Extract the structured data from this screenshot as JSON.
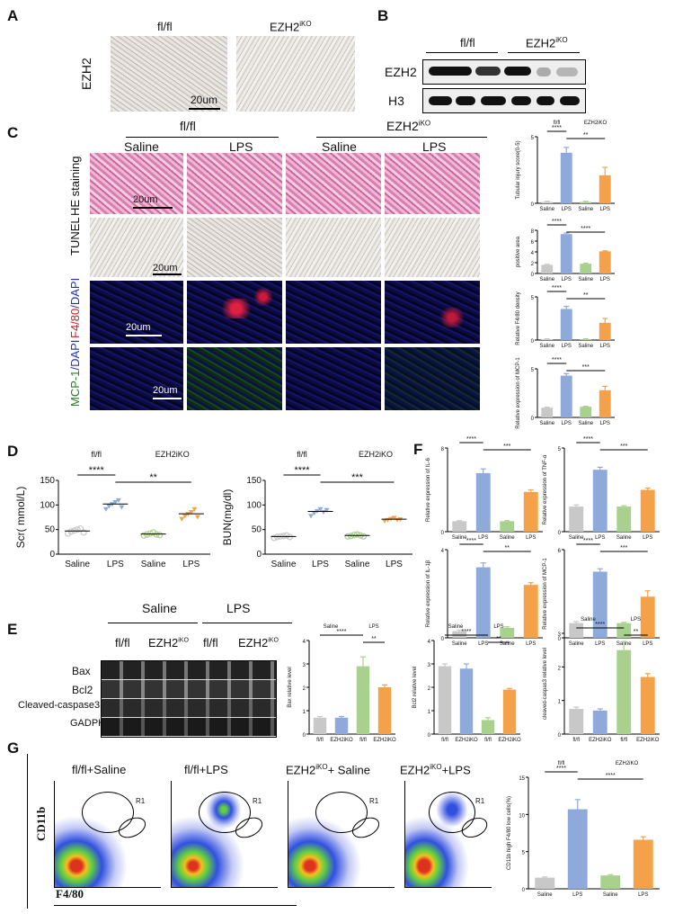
{
  "colors": {
    "saline_ctrl": "#c8c8c8",
    "lps_ctrl": "#8eaadb",
    "saline_ko": "#a9d18e",
    "lps_ko": "#f4a14a"
  },
  "panelA": {
    "letter": "A",
    "ylabel": "EZH2",
    "col1": "fl/fl",
    "col2": "EZH2",
    "col2_sup": "iKO",
    "scale": "20um"
  },
  "panelB": {
    "letter": "B",
    "group1": "fl/fl",
    "group2": "EZH2",
    "group2_sup": "iKO",
    "row1": "EZH2",
    "row2": "H3"
  },
  "panelC": {
    "letter": "C",
    "group1": "fl/fl",
    "group2": "EZH2",
    "group2_sup": "iKO",
    "cond1": "Saline",
    "cond2": "LPS",
    "cond3": "Saline",
    "cond4": "LPS",
    "rows": [
      "HE staining",
      "TUNEL",
      "F4/80/DAPI",
      "MCP-1/DAPI"
    ],
    "row3_red": "F4/80",
    "row3_blue": "/DAPI",
    "row4_green": "MCP-1",
    "row4_blue": "/DAPI",
    "scale": "20um"
  },
  "panelD": {
    "letter": "D"
  },
  "panelE": {
    "letter": "E",
    "group1": "Saline",
    "group2": "LPS",
    "sub1": "fl/fl",
    "sub2": "EZH2",
    "sub2_sup": "iKO",
    "sub3": "fl/fl",
    "sub4": "EZH2",
    "sub4_sup": "iKO",
    "rows": [
      "Bax",
      "Bcl2",
      "Cleaved-caspase3",
      "GADPH"
    ]
  },
  "panelF": {
    "letter": "F"
  },
  "panelG": {
    "letter": "G",
    "titles": [
      "fl/fl+Saline",
      "fl/fl+LPS",
      "EZH2",
      "EZH2"
    ],
    "title3_sup": "iKO",
    "title3_rest": "+ Saline",
    "title4_sup": "iKO",
    "title4_rest": "+LPS",
    "gate": "R1",
    "yaxis": "CD11b",
    "xaxis": "F4/80"
  },
  "chart_data": [
    {
      "type": "bar",
      "id": "C1",
      "ylabel": "Tubular injury score(0-5)",
      "categories": [
        "Saline",
        "LPS",
        "Saline",
        "LPS"
      ],
      "values": [
        0.1,
        3.8,
        0.1,
        2.1
      ],
      "errors": [
        0.05,
        0.4,
        0.05,
        0.6
      ],
      "ylim": [
        0,
        5
      ],
      "sig": [
        {
          "from": 0,
          "to": 1,
          "text": "****"
        },
        {
          "from": 1,
          "to": 3,
          "text": "**"
        }
      ],
      "groups": [
        "fl/fl",
        "EZH2iKO"
      ]
    },
    {
      "type": "bar",
      "id": "C2",
      "ylabel": "positive area",
      "categories": [
        "Saline",
        "LPS",
        "Saline",
        "LPS"
      ],
      "values": [
        1.6,
        7.3,
        1.8,
        4.1
      ],
      "errors": [
        0.1,
        0.2,
        0.1,
        0.1
      ],
      "ylim": [
        0,
        8
      ],
      "yticks": [
        0,
        2,
        4,
        6,
        8
      ],
      "sig": [
        {
          "from": 0,
          "to": 1,
          "text": "****"
        },
        {
          "from": 1,
          "to": 3,
          "text": "****"
        }
      ]
    },
    {
      "type": "bar",
      "id": "C3",
      "ylabel": "Relative F4/80 density",
      "categories": [
        "Saline",
        "LPS",
        "Saline",
        "LPS"
      ],
      "values": [
        0.1,
        3.6,
        0.1,
        2.0
      ],
      "errors": [
        0.05,
        0.3,
        0.05,
        0.5
      ],
      "ylim": [
        0,
        5
      ],
      "sig": [
        {
          "from": 0,
          "to": 1,
          "text": "****"
        },
        {
          "from": 1,
          "to": 3,
          "text": "**"
        }
      ]
    },
    {
      "type": "bar",
      "id": "C4",
      "ylabel": "Relative expression of MCP-1",
      "categories": [
        "Saline",
        "LPS",
        "Saline",
        "LPS"
      ],
      "values": [
        1.0,
        4.3,
        1.1,
        2.8
      ],
      "errors": [
        0.05,
        0.2,
        0.05,
        0.4
      ],
      "ylim": [
        0,
        5
      ],
      "sig": [
        {
          "from": 0,
          "to": 1,
          "text": "****"
        },
        {
          "from": 1,
          "to": 3,
          "text": "***"
        }
      ]
    },
    {
      "type": "scatter",
      "id": "D1",
      "ylabel": "Scr( mmol/L)",
      "categories": [
        "Saline",
        "LPS",
        "Saline",
        "LPS"
      ],
      "means": [
        47,
        102,
        41,
        82
      ],
      "ylim": [
        0,
        150
      ],
      "yticks": [
        0,
        50,
        100,
        150
      ],
      "groups": [
        "fl/fl",
        "EZH2iKO"
      ],
      "sig": [
        {
          "from": 0,
          "to": 1,
          "text": "****"
        },
        {
          "from": 1,
          "to": 3,
          "text": "**"
        }
      ],
      "points": [
        [
          42,
          46,
          48,
          50,
          52,
          44
        ],
        [
          92,
          98,
          102,
          106,
          110,
          96
        ],
        [
          38,
          40,
          42,
          44,
          40,
          39
        ],
        [
          72,
          78,
          82,
          86,
          92,
          76
        ]
      ]
    },
    {
      "type": "scatter",
      "id": "D2",
      "ylabel": "BUN(mg/dl)",
      "categories": [
        "Saline",
        "LPS",
        "Saline",
        "LPS"
      ],
      "means": [
        36,
        87,
        38,
        71
      ],
      "ylim": [
        0,
        150
      ],
      "yticks": [
        0,
        50,
        100,
        150
      ],
      "groups": [
        "fl/fl",
        "EZH2iKO"
      ],
      "sig": [
        {
          "from": 0,
          "to": 1,
          "text": "****"
        },
        {
          "from": 1,
          "to": 3,
          "text": "***"
        }
      ],
      "points": [
        [
          33,
          35,
          36,
          37,
          38,
          35
        ],
        [
          78,
          84,
          88,
          92,
          86,
          90
        ],
        [
          36,
          37,
          39,
          40,
          38,
          36
        ],
        [
          68,
          70,
          72,
          74,
          70,
          71
        ]
      ]
    },
    {
      "type": "bar",
      "id": "F1",
      "ylabel": "Relative expression of IL-6",
      "categories": [
        "Saline",
        "LPS",
        "Saline",
        "LPS"
      ],
      "values": [
        1.0,
        5.6,
        1.0,
        3.8
      ],
      "errors": [
        0.05,
        0.4,
        0.05,
        0.2
      ],
      "ylim": [
        0,
        8
      ],
      "sig": [
        {
          "from": 0,
          "to": 1,
          "text": "****"
        },
        {
          "from": 1,
          "to": 3,
          "text": "***"
        }
      ]
    },
    {
      "type": "bar",
      "id": "F2",
      "ylabel": "Relative expression of TNF-α",
      "categories": [
        "Saline",
        "LPS",
        "Saline",
        "LPS"
      ],
      "values": [
        1.5,
        3.7,
        1.5,
        2.5
      ],
      "errors": [
        0.1,
        0.15,
        0.05,
        0.1
      ],
      "ylim": [
        0,
        5
      ],
      "sig": [
        {
          "from": 0,
          "to": 1,
          "text": "****"
        },
        {
          "from": 1,
          "to": 3,
          "text": "***"
        }
      ]
    },
    {
      "type": "bar",
      "id": "F3",
      "ylabel": "Relative expression of IL-1β",
      "categories": [
        "Saline",
        "LPS",
        "Saline",
        "LPS"
      ],
      "values": [
        0.3,
        3.2,
        0.45,
        2.4
      ],
      "errors": [
        0.05,
        0.2,
        0.05,
        0.1
      ],
      "ylim": [
        0,
        4
      ],
      "sig": [
        {
          "from": 0,
          "to": 1,
          "text": "****"
        },
        {
          "from": 1,
          "to": 3,
          "text": "**"
        }
      ]
    },
    {
      "type": "bar",
      "id": "F4",
      "ylabel": "Relative expression of MCP-1",
      "categories": [
        "Saline",
        "LPS",
        "Saline",
        "LPS"
      ],
      "values": [
        1.0,
        4.5,
        1.0,
        2.8
      ],
      "errors": [
        0.1,
        0.2,
        0.05,
        0.4
      ],
      "ylim": [
        0,
        6
      ],
      "sig": [
        {
          "from": 0,
          "to": 1,
          "text": "****"
        },
        {
          "from": 1,
          "to": 3,
          "text": "***"
        }
      ]
    },
    {
      "type": "bar",
      "id": "E1",
      "ylabel": "Bax relative level",
      "categories": [
        "fl/fl",
        "EZH2iKO",
        "fl/fl",
        "EZH2iKO"
      ],
      "values": [
        0.7,
        0.7,
        2.9,
        2.0
      ],
      "errors": [
        0.05,
        0.05,
        0.4,
        0.1
      ],
      "ylim": [
        0,
        4
      ],
      "yticks": [
        0,
        1,
        2,
        3,
        4
      ],
      "sig": [
        {
          "from": 0,
          "to": 2,
          "text": "****"
        },
        {
          "from": 2,
          "to": 3,
          "text": "**"
        }
      ],
      "groups": [
        "Saline",
        "LPS"
      ]
    },
    {
      "type": "bar",
      "id": "E2",
      "ylabel": "Bcl2 relative level",
      "categories": [
        "fl/fl",
        "EZH2iKO",
        "fl/fl",
        "EZH2iKO"
      ],
      "values": [
        2.9,
        2.8,
        0.6,
        1.9
      ],
      "errors": [
        0.1,
        0.2,
        0.1,
        0.05
      ],
      "ylim": [
        0,
        4
      ],
      "yticks": [
        0,
        1,
        2,
        3,
        4
      ],
      "sig": [
        {
          "from": 0,
          "to": 2,
          "text": "****"
        },
        {
          "from": 2,
          "to": 3,
          "text": "**"
        }
      ],
      "groups": [
        "Saline",
        "LPS"
      ]
    },
    {
      "type": "bar",
      "id": "E3",
      "ylabel": "cleaved-caspas3 relative level",
      "categories": [
        "fl/fl",
        "EZH2iKO",
        "fl/fl",
        "EZH2iKO"
      ],
      "values": [
        0.75,
        0.7,
        2.5,
        1.7
      ],
      "errors": [
        0.05,
        0.05,
        0.25,
        0.1
      ],
      "ylim": [
        0,
        3
      ],
      "yticks": [
        0,
        1,
        2,
        3
      ],
      "sig": [
        {
          "from": 0,
          "to": 2,
          "text": "****"
        },
        {
          "from": 2,
          "to": 3,
          "text": "**"
        }
      ],
      "groups": [
        "Saline",
        "LPS"
      ]
    },
    {
      "type": "bar",
      "id": "G1",
      "ylabel": "CD11b high F4/80 low cells(%)",
      "categories": [
        "Saline",
        "LPS",
        "Saline",
        "LPS"
      ],
      "values": [
        1.5,
        10.7,
        1.8,
        6.6
      ],
      "errors": [
        0.1,
        1.3,
        0.1,
        0.4
      ],
      "ylim": [
        0,
        15
      ],
      "yticks": [
        0,
        5,
        10,
        15
      ],
      "sig": [
        {
          "from": 0,
          "to": 1,
          "text": "****"
        },
        {
          "from": 1,
          "to": 3,
          "text": "****"
        }
      ],
      "groups": [
        "fl/fl",
        "EZH2iKO"
      ]
    }
  ]
}
